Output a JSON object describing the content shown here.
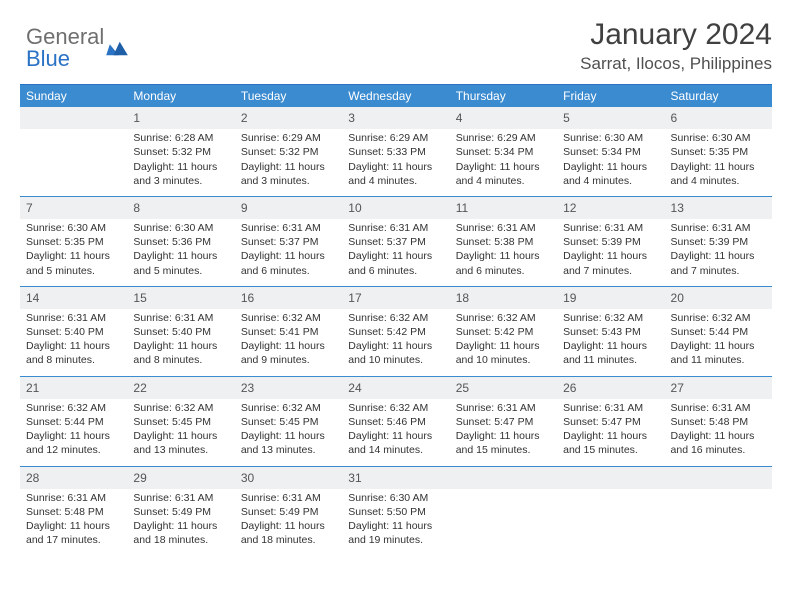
{
  "logo": {
    "text1": "General",
    "text2": "Blue"
  },
  "title": "January 2024",
  "location": "Sarrat, Ilocos, Philippines",
  "colors": {
    "header_bg": "#3b8bd0",
    "header_text": "#ffffff",
    "daynum_bg": "#eef0f2",
    "rule": "#3b8bd0",
    "logo_grey": "#6f6f6f",
    "logo_blue": "#2a72c4"
  },
  "weekdays": [
    "Sunday",
    "Monday",
    "Tuesday",
    "Wednesday",
    "Thursday",
    "Friday",
    "Saturday"
  ],
  "weeks": [
    [
      null,
      {
        "n": "1",
        "sr": "6:28 AM",
        "ss": "5:32 PM",
        "dl": "11 hours and 3 minutes."
      },
      {
        "n": "2",
        "sr": "6:29 AM",
        "ss": "5:32 PM",
        "dl": "11 hours and 3 minutes."
      },
      {
        "n": "3",
        "sr": "6:29 AM",
        "ss": "5:33 PM",
        "dl": "11 hours and 4 minutes."
      },
      {
        "n": "4",
        "sr": "6:29 AM",
        "ss": "5:34 PM",
        "dl": "11 hours and 4 minutes."
      },
      {
        "n": "5",
        "sr": "6:30 AM",
        "ss": "5:34 PM",
        "dl": "11 hours and 4 minutes."
      },
      {
        "n": "6",
        "sr": "6:30 AM",
        "ss": "5:35 PM",
        "dl": "11 hours and 4 minutes."
      }
    ],
    [
      {
        "n": "7",
        "sr": "6:30 AM",
        "ss": "5:35 PM",
        "dl": "11 hours and 5 minutes."
      },
      {
        "n": "8",
        "sr": "6:30 AM",
        "ss": "5:36 PM",
        "dl": "11 hours and 5 minutes."
      },
      {
        "n": "9",
        "sr": "6:31 AM",
        "ss": "5:37 PM",
        "dl": "11 hours and 6 minutes."
      },
      {
        "n": "10",
        "sr": "6:31 AM",
        "ss": "5:37 PM",
        "dl": "11 hours and 6 minutes."
      },
      {
        "n": "11",
        "sr": "6:31 AM",
        "ss": "5:38 PM",
        "dl": "11 hours and 6 minutes."
      },
      {
        "n": "12",
        "sr": "6:31 AM",
        "ss": "5:39 PM",
        "dl": "11 hours and 7 minutes."
      },
      {
        "n": "13",
        "sr": "6:31 AM",
        "ss": "5:39 PM",
        "dl": "11 hours and 7 minutes."
      }
    ],
    [
      {
        "n": "14",
        "sr": "6:31 AM",
        "ss": "5:40 PM",
        "dl": "11 hours and 8 minutes."
      },
      {
        "n": "15",
        "sr": "6:31 AM",
        "ss": "5:40 PM",
        "dl": "11 hours and 8 minutes."
      },
      {
        "n": "16",
        "sr": "6:32 AM",
        "ss": "5:41 PM",
        "dl": "11 hours and 9 minutes."
      },
      {
        "n": "17",
        "sr": "6:32 AM",
        "ss": "5:42 PM",
        "dl": "11 hours and 10 minutes."
      },
      {
        "n": "18",
        "sr": "6:32 AM",
        "ss": "5:42 PM",
        "dl": "11 hours and 10 minutes."
      },
      {
        "n": "19",
        "sr": "6:32 AM",
        "ss": "5:43 PM",
        "dl": "11 hours and 11 minutes."
      },
      {
        "n": "20",
        "sr": "6:32 AM",
        "ss": "5:44 PM",
        "dl": "11 hours and 11 minutes."
      }
    ],
    [
      {
        "n": "21",
        "sr": "6:32 AM",
        "ss": "5:44 PM",
        "dl": "11 hours and 12 minutes."
      },
      {
        "n": "22",
        "sr": "6:32 AM",
        "ss": "5:45 PM",
        "dl": "11 hours and 13 minutes."
      },
      {
        "n": "23",
        "sr": "6:32 AM",
        "ss": "5:45 PM",
        "dl": "11 hours and 13 minutes."
      },
      {
        "n": "24",
        "sr": "6:32 AM",
        "ss": "5:46 PM",
        "dl": "11 hours and 14 minutes."
      },
      {
        "n": "25",
        "sr": "6:31 AM",
        "ss": "5:47 PM",
        "dl": "11 hours and 15 minutes."
      },
      {
        "n": "26",
        "sr": "6:31 AM",
        "ss": "5:47 PM",
        "dl": "11 hours and 15 minutes."
      },
      {
        "n": "27",
        "sr": "6:31 AM",
        "ss": "5:48 PM",
        "dl": "11 hours and 16 minutes."
      }
    ],
    [
      {
        "n": "28",
        "sr": "6:31 AM",
        "ss": "5:48 PM",
        "dl": "11 hours and 17 minutes."
      },
      {
        "n": "29",
        "sr": "6:31 AM",
        "ss": "5:49 PM",
        "dl": "11 hours and 18 minutes."
      },
      {
        "n": "30",
        "sr": "6:31 AM",
        "ss": "5:49 PM",
        "dl": "11 hours and 18 minutes."
      },
      {
        "n": "31",
        "sr": "6:30 AM",
        "ss": "5:50 PM",
        "dl": "11 hours and 19 minutes."
      },
      null,
      null,
      null
    ]
  ],
  "labels": {
    "sunrise": "Sunrise:",
    "sunset": "Sunset:",
    "daylight": "Daylight:"
  }
}
